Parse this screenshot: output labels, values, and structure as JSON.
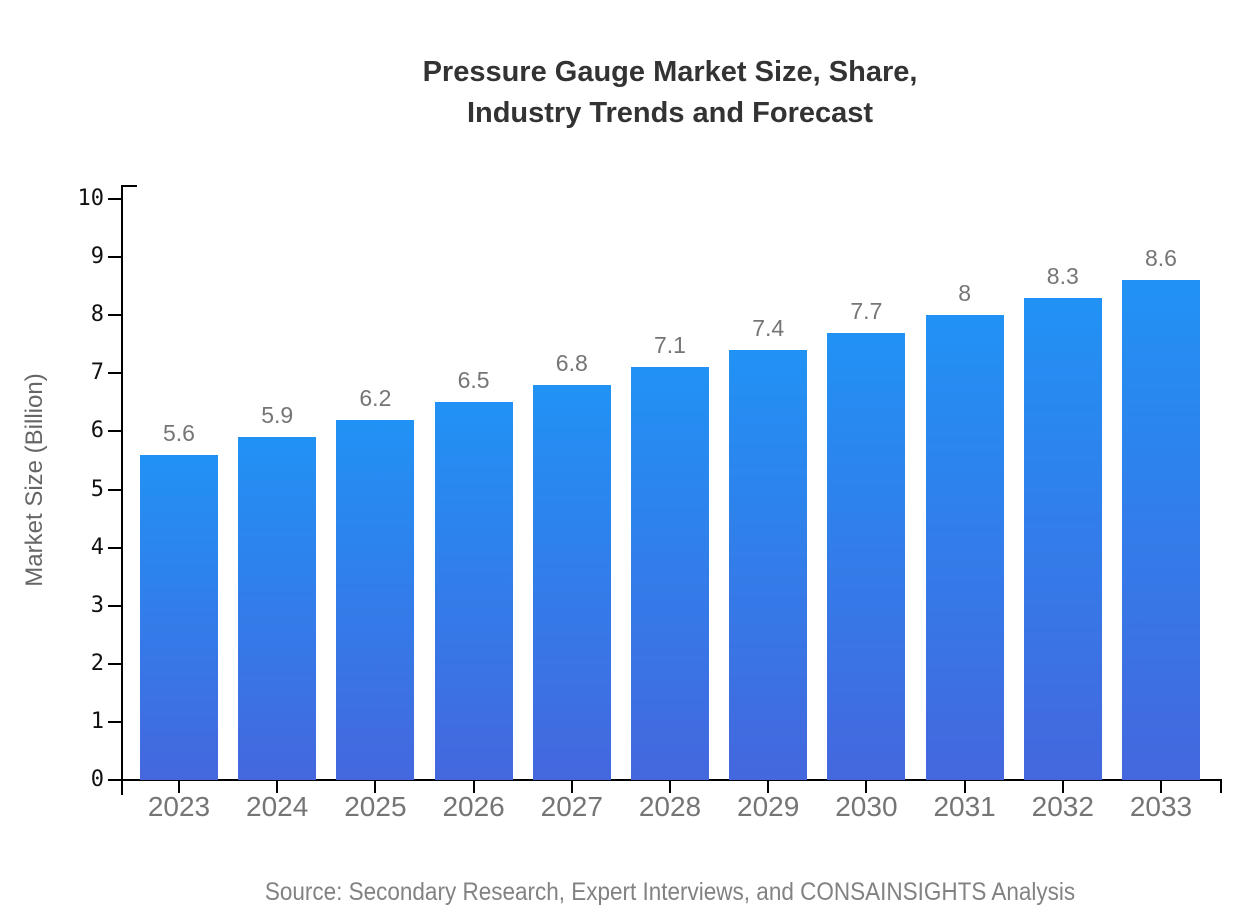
{
  "header": {
    "title_line1": "Pressure Gauge Market Size, Share,",
    "title_line2": "Industry Trends and Forecast"
  },
  "footer": {
    "source_text": "Source: Secondary Research, Expert Interviews, and CONSAINSIGHTS Analysis"
  },
  "chart_data": {
    "type": "bar",
    "title": "Pressure Gauge Market Size, Share, Industry Trends and Forecast",
    "categories": [
      "2023",
      "2024",
      "2025",
      "2026",
      "2027",
      "2028",
      "2029",
      "2030",
      "2031",
      "2032",
      "2033"
    ],
    "values": [
      5.6,
      5.9,
      6.2,
      6.5,
      6.8,
      7.1,
      7.4,
      7.7,
      8,
      8.3,
      8.6
    ],
    "value_labels": [
      "5.6",
      "5.9",
      "6.2",
      "6.5",
      "6.8",
      "7.1",
      "7.4",
      "7.7",
      "8",
      "8.3",
      "8.6"
    ],
    "xlabel": "",
    "ylabel": "Market Size (Billion)",
    "ylim": [
      0,
      10
    ],
    "y_ticks": [
      0,
      1,
      2,
      3,
      4,
      5,
      6,
      7,
      8,
      9,
      10
    ],
    "grid": "off",
    "legend": "none",
    "colors": {
      "bar_gradient_top": "#2192f5",
      "bar_gradient_bottom": "#4467de",
      "axis": "#000000",
      "title_text": "#333333",
      "tick_label_y": "#111111",
      "tick_label_x": "#757575",
      "value_label": "#757575",
      "ylabel_text": "#666666",
      "source_text": "#828282"
    }
  }
}
